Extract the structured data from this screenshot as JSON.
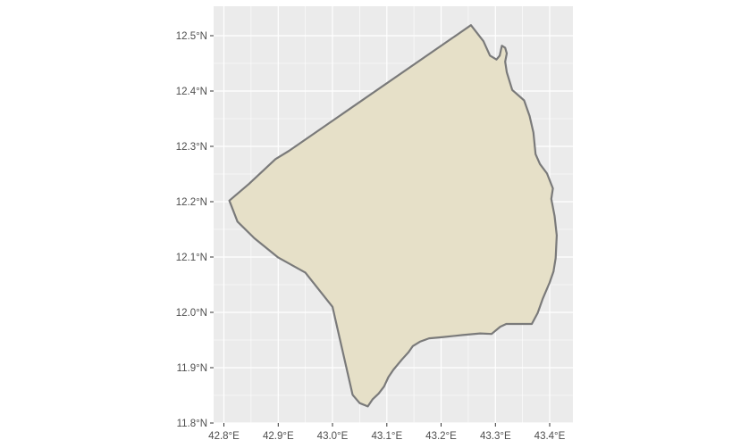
{
  "map": {
    "type": "choropleth-outline",
    "projection": "lon/lat",
    "xlim": [
      42.78,
      43.44
    ],
    "ylim": [
      11.8,
      12.54
    ],
    "grid": true,
    "colors": {
      "panel_background": "#ebebeb",
      "gridline": "#ffffff",
      "region_fill": "#e6e0c8",
      "region_outline": "#7a7a7a",
      "tick_text": "#4d4d4d"
    },
    "x_ticks": [
      {
        "value": 42.8,
        "label": "42.8°E"
      },
      {
        "value": 42.9,
        "label": "42.9°E"
      },
      {
        "value": 43.0,
        "label": "43.0°E"
      },
      {
        "value": 43.1,
        "label": "43.1°E"
      },
      {
        "value": 43.2,
        "label": "43.2°E"
      },
      {
        "value": 43.3,
        "label": "43.3°E"
      },
      {
        "value": 43.4,
        "label": "43.4°E"
      }
    ],
    "y_ticks": [
      {
        "value": 11.8,
        "label": "11.8°N"
      },
      {
        "value": 11.9,
        "label": "11.9°N"
      },
      {
        "value": 12.0,
        "label": "12.0°N"
      },
      {
        "value": 12.1,
        "label": "12.1°N"
      },
      {
        "value": 12.2,
        "label": "12.2°N"
      },
      {
        "value": 12.3,
        "label": "12.3°N"
      },
      {
        "value": 12.4,
        "label": "12.4°N"
      },
      {
        "value": 12.5,
        "label": "12.5°N"
      }
    ],
    "region_boundary": [
      [
        42.81,
        12.202
      ],
      [
        42.846,
        12.232
      ],
      [
        42.895,
        12.277
      ],
      [
        42.92,
        12.292
      ],
      [
        43.255,
        12.519
      ],
      [
        43.278,
        12.49
      ],
      [
        43.29,
        12.464
      ],
      [
        43.302,
        12.457
      ],
      [
        43.308,
        12.464
      ],
      [
        43.312,
        12.482
      ],
      [
        43.318,
        12.478
      ],
      [
        43.321,
        12.468
      ],
      [
        43.318,
        12.453
      ],
      [
        43.321,
        12.434
      ],
      [
        43.331,
        12.402
      ],
      [
        43.353,
        12.383
      ],
      [
        43.363,
        12.355
      ],
      [
        43.37,
        12.325
      ],
      [
        43.374,
        12.286
      ],
      [
        43.382,
        12.268
      ],
      [
        43.395,
        12.251
      ],
      [
        43.406,
        12.224
      ],
      [
        43.403,
        12.205
      ],
      [
        43.409,
        12.174
      ],
      [
        43.413,
        12.139
      ],
      [
        43.411,
        12.098
      ],
      [
        43.407,
        12.074
      ],
      [
        43.4,
        12.054
      ],
      [
        43.387,
        12.024
      ],
      [
        43.378,
        11.999
      ],
      [
        43.367,
        11.979
      ],
      [
        43.32,
        11.979
      ],
      [
        43.309,
        11.974
      ],
      [
        43.293,
        11.961
      ],
      [
        43.272,
        11.962
      ],
      [
        43.24,
        11.959
      ],
      [
        43.201,
        11.955
      ],
      [
        43.178,
        11.953
      ],
      [
        43.161,
        11.947
      ],
      [
        43.148,
        11.939
      ],
      [
        43.14,
        11.928
      ],
      [
        43.128,
        11.915
      ],
      [
        43.112,
        11.896
      ],
      [
        43.103,
        11.883
      ],
      [
        43.095,
        11.866
      ],
      [
        43.085,
        11.853
      ],
      [
        43.074,
        11.843
      ],
      [
        43.065,
        11.83
      ],
      [
        43.05,
        11.836
      ],
      [
        43.037,
        11.851
      ],
      [
        43.0,
        12.01
      ],
      [
        42.95,
        12.072
      ],
      [
        42.9,
        12.099
      ],
      [
        42.856,
        12.134
      ],
      [
        42.825,
        12.164
      ],
      [
        42.81,
        12.202
      ]
    ]
  }
}
